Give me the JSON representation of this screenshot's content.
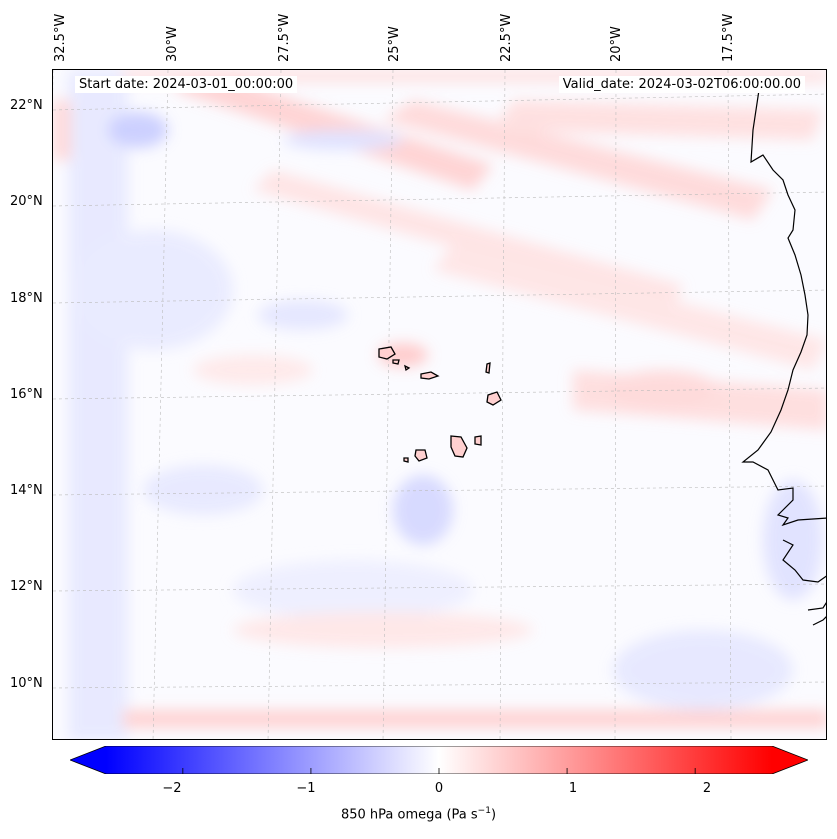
{
  "map": {
    "start_date": "Start date: 2024-03-01_00:00:00",
    "valid_date": "Valid_date: 2024-03-02T06:00:00.00",
    "lon_labels": [
      "32.5°W",
      "30°W",
      "27.5°W",
      "25°W",
      "22.5°W",
      "20°W",
      "17.5°W"
    ],
    "lat_labels": [
      "22°N",
      "20°N",
      "18°N",
      "16°N",
      "14°N",
      "12°N",
      "10°N"
    ],
    "colors": {
      "positive": "#ff0000",
      "negative": "#0000ff",
      "neutral": "#ffffff",
      "coastline": "#000000"
    }
  },
  "colorbar": {
    "variable": "850 hPa omega (Pa s",
    "unit_exponent": "−1",
    "unit_close": ")",
    "tick_labels": [
      "−2",
      "−1",
      "0",
      "1",
      "2"
    ],
    "tick_values": [
      -2,
      -1,
      0,
      1,
      2
    ],
    "range": [
      -2.6,
      2.6
    ]
  }
}
